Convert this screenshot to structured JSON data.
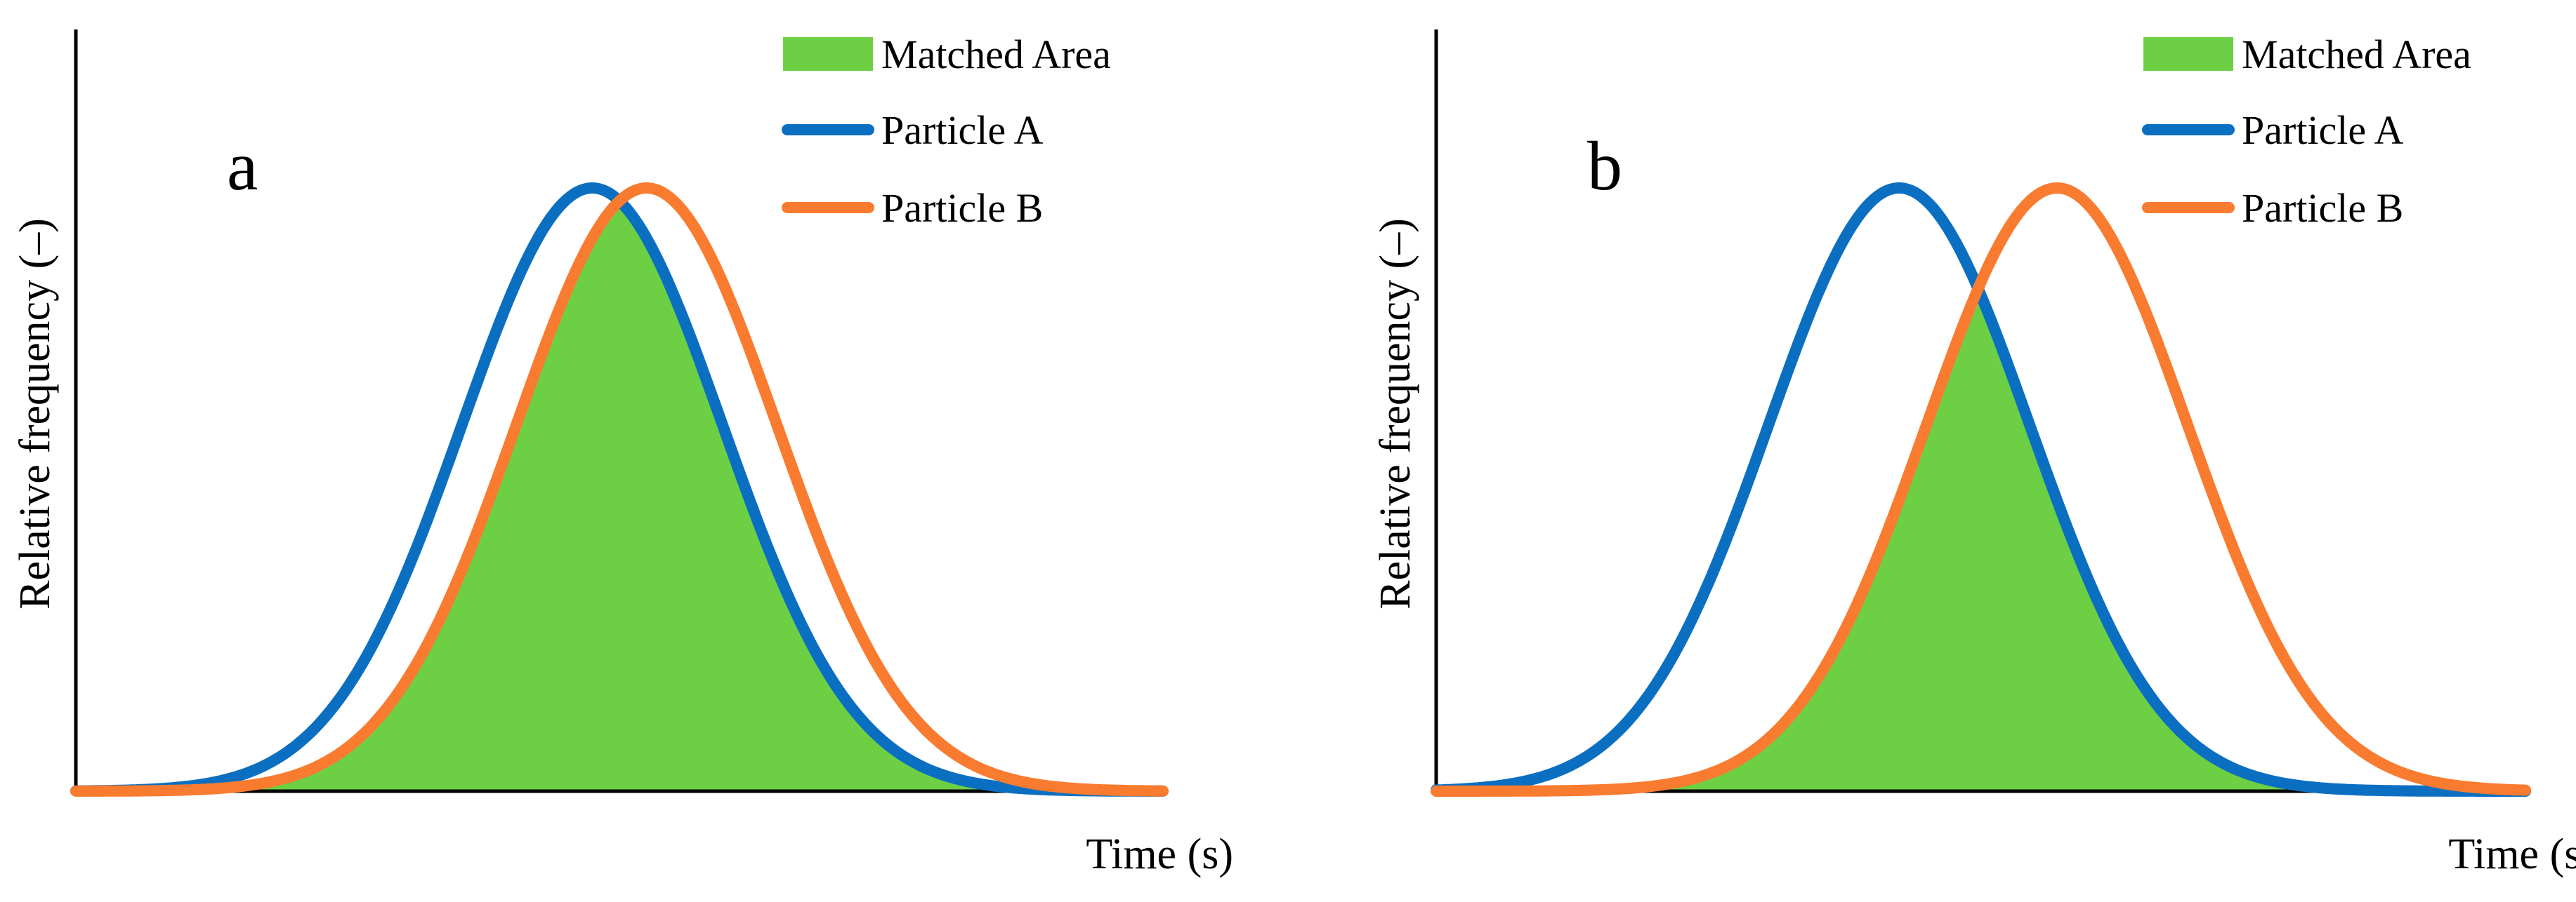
{
  "chart_data": [
    {
      "panel": "a",
      "type": "area",
      "x_range": [
        0,
        100
      ],
      "y_range": [
        0,
        1
      ],
      "xlabel": "Time (s)",
      "ylabel": "Relative frequency (–)",
      "ticks": false,
      "legend": [
        {
          "label": "Matched Area",
          "color": "#6dd044",
          "kind": "patch"
        },
        {
          "label": "Particle A",
          "color": "#0b6fc1",
          "kind": "line"
        },
        {
          "label": "Particle B",
          "color": "#f97b2f",
          "kind": "line"
        }
      ],
      "series": [
        {
          "name": "Particle A",
          "distribution": "normal",
          "mean": 47.5,
          "sd": 12,
          "peak": 1.0,
          "color": "#0b6fc1"
        },
        {
          "name": "Particle B",
          "distribution": "normal",
          "mean": 52.5,
          "sd": 12,
          "peak": 1.0,
          "color": "#f97b2f"
        }
      ],
      "matched_area": {
        "label": "Matched Area",
        "definition": "min(Particle A, Particle B)",
        "color": "#6dd044"
      }
    },
    {
      "panel": "b",
      "type": "area",
      "x_range": [
        0,
        100
      ],
      "y_range": [
        0,
        1
      ],
      "xlabel": "Time (s)",
      "ylabel": "Relative frequency (–)",
      "ticks": false,
      "legend": [
        {
          "label": "Matched Area",
          "color": "#6dd044",
          "kind": "patch"
        },
        {
          "label": "Particle A",
          "color": "#0b6fc1",
          "kind": "line"
        },
        {
          "label": "Particle B",
          "color": "#f97b2f",
          "kind": "line"
        }
      ],
      "series": [
        {
          "name": "Particle A",
          "distribution": "normal",
          "mean": 42.5,
          "sd": 12,
          "peak": 1.0,
          "color": "#0b6fc1"
        },
        {
          "name": "Particle B",
          "distribution": "normal",
          "mean": 57,
          "sd": 12,
          "peak": 1.0,
          "color": "#f97b2f"
        }
      ],
      "matched_area": {
        "label": "Matched Area",
        "definition": "min(Particle A, Particle B)",
        "color": "#6dd044"
      }
    }
  ]
}
